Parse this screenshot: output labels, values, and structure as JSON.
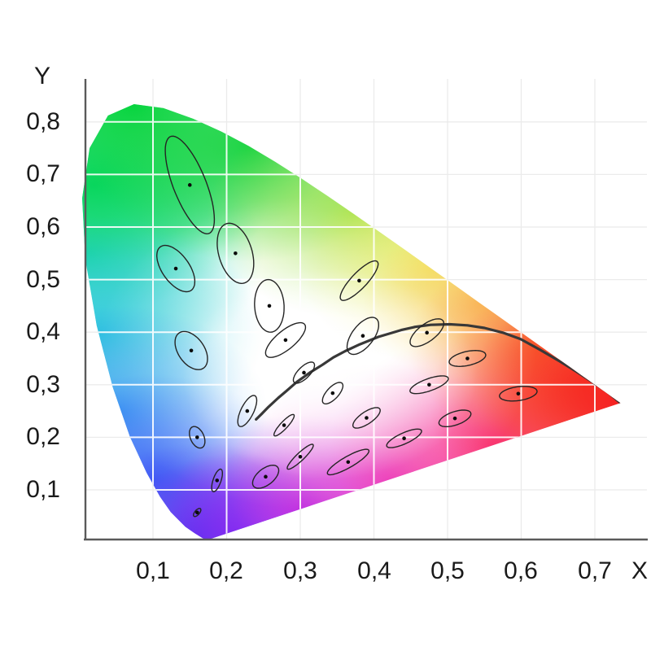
{
  "chart_data": {
    "type": "scatter",
    "description": "CIE 1931 xy chromaticity diagram (horseshoe gamut with spectral colors) showing the 25 MacAdam ellipses magnified 10x as black outlines with center dots, and the Planckian (black-body) locus as a dark curve",
    "title": "",
    "xlabel": "X",
    "ylabel": "Y",
    "xlim": [
      0,
      0.76
    ],
    "ylim": [
      0,
      0.88
    ],
    "grid": true,
    "x_tick_labels": [
      "0,1",
      "0,2",
      "0,3",
      "0,4",
      "0,5",
      "0,6",
      "0,7"
    ],
    "x_tick_values": [
      0.1,
      0.2,
      0.3,
      0.4,
      0.5,
      0.6,
      0.7
    ],
    "y_tick_labels": [
      "0,8",
      "0,7",
      "0,6",
      "0,5",
      "0,4",
      "0,3",
      "0,2",
      "0,1"
    ],
    "y_tick_values": [
      0.8,
      0.7,
      0.6,
      0.5,
      0.4,
      0.3,
      0.2,
      0.1
    ],
    "macadam_magnification": 10,
    "macadam_ellipses": [
      {
        "x": 0.16,
        "y": 0.057,
        "a": 0.00085,
        "b": 0.00035,
        "theta": 62.5
      },
      {
        "x": 0.187,
        "y": 0.118,
        "a": 0.0022,
        "b": 0.00055,
        "theta": 77.0
      },
      {
        "x": 0.253,
        "y": 0.125,
        "a": 0.0025,
        "b": 0.0013,
        "theta": 55.5
      },
      {
        "x": 0.15,
        "y": 0.68,
        "a": 0.0096,
        "b": 0.0023,
        "theta": 105.0
      },
      {
        "x": 0.131,
        "y": 0.521,
        "a": 0.0047,
        "b": 0.002,
        "theta": 112.5
      },
      {
        "x": 0.212,
        "y": 0.55,
        "a": 0.0058,
        "b": 0.0023,
        "theta": 100.0
      },
      {
        "x": 0.258,
        "y": 0.45,
        "a": 0.005,
        "b": 0.002,
        "theta": 92.0
      },
      {
        "x": 0.152,
        "y": 0.365,
        "a": 0.0038,
        "b": 0.0019,
        "theta": 110.0
      },
      {
        "x": 0.28,
        "y": 0.385,
        "a": 0.004,
        "b": 0.0015,
        "theta": 52.5
      },
      {
        "x": 0.38,
        "y": 0.498,
        "a": 0.0044,
        "b": 0.0012,
        "theta": 57.5
      },
      {
        "x": 0.16,
        "y": 0.2,
        "a": 0.0021,
        "b": 0.00095,
        "theta": 104.0
      },
      {
        "x": 0.228,
        "y": 0.25,
        "a": 0.0031,
        "b": 0.0009,
        "theta": 72.0
      },
      {
        "x": 0.305,
        "y": 0.323,
        "a": 0.0023,
        "b": 0.0009,
        "theta": 58.0
      },
      {
        "x": 0.385,
        "y": 0.393,
        "a": 0.0038,
        "b": 0.0016,
        "theta": 65.5
      },
      {
        "x": 0.472,
        "y": 0.399,
        "a": 0.0032,
        "b": 0.0014,
        "theta": 51.0
      },
      {
        "x": 0.527,
        "y": 0.35,
        "a": 0.0026,
        "b": 0.0013,
        "theta": 20.0
      },
      {
        "x": 0.475,
        "y": 0.3,
        "a": 0.0029,
        "b": 0.0011,
        "theta": 28.5
      },
      {
        "x": 0.51,
        "y": 0.236,
        "a": 0.0024,
        "b": 0.0012,
        "theta": 29.5
      },
      {
        "x": 0.596,
        "y": 0.283,
        "a": 0.0026,
        "b": 0.0013,
        "theta": 13.0
      },
      {
        "x": 0.344,
        "y": 0.284,
        "a": 0.0023,
        "b": 0.0009,
        "theta": 60.0
      },
      {
        "x": 0.39,
        "y": 0.237,
        "a": 0.0025,
        "b": 0.001,
        "theta": 47.0
      },
      {
        "x": 0.441,
        "y": 0.198,
        "a": 0.0028,
        "b": 0.00095,
        "theta": 34.5
      },
      {
        "x": 0.278,
        "y": 0.223,
        "a": 0.0024,
        "b": 0.00055,
        "theta": 57.5
      },
      {
        "x": 0.3,
        "y": 0.163,
        "a": 0.0029,
        "b": 0.0006,
        "theta": 54.0
      },
      {
        "x": 0.365,
        "y": 0.153,
        "a": 0.0036,
        "b": 0.00095,
        "theta": 40.0
      }
    ],
    "planckian_locus": [
      [
        0.24,
        0.234
      ],
      [
        0.248,
        0.245
      ],
      [
        0.257,
        0.258
      ],
      [
        0.27,
        0.275
      ],
      [
        0.281,
        0.288
      ],
      [
        0.295,
        0.305
      ],
      [
        0.313,
        0.323
      ],
      [
        0.33,
        0.338
      ],
      [
        0.345,
        0.352
      ],
      [
        0.361,
        0.364
      ],
      [
        0.381,
        0.377
      ],
      [
        0.406,
        0.391
      ],
      [
        0.437,
        0.404
      ],
      [
        0.456,
        0.41
      ],
      [
        0.477,
        0.414
      ],
      [
        0.503,
        0.415
      ],
      [
        0.527,
        0.413
      ],
      [
        0.55,
        0.408
      ],
      [
        0.575,
        0.399
      ],
      [
        0.599,
        0.387
      ],
      [
        0.625,
        0.367
      ],
      [
        0.653,
        0.344
      ],
      [
        0.675,
        0.325
      ],
      [
        0.697,
        0.305
      ],
      [
        0.717,
        0.286
      ],
      [
        0.735,
        0.265
      ]
    ],
    "spectral_locus": [
      [
        0.1741,
        0.005
      ],
      [
        0.174,
        0.005
      ],
      [
        0.1733,
        0.0048
      ],
      [
        0.1726,
        0.0048
      ],
      [
        0.1714,
        0.0051
      ],
      [
        0.1689,
        0.0069
      ],
      [
        0.1644,
        0.0109
      ],
      [
        0.1566,
        0.0177
      ],
      [
        0.144,
        0.0297
      ],
      [
        0.1241,
        0.0578
      ],
      [
        0.1096,
        0.0868
      ],
      [
        0.0913,
        0.1327
      ],
      [
        0.0687,
        0.2007
      ],
      [
        0.0454,
        0.295
      ],
      [
        0.0235,
        0.4127
      ],
      [
        0.0082,
        0.5384
      ],
      [
        0.0039,
        0.6548
      ],
      [
        0.0139,
        0.7502
      ],
      [
        0.0389,
        0.812
      ],
      [
        0.0743,
        0.8338
      ],
      [
        0.1142,
        0.8262
      ],
      [
        0.1547,
        0.8059
      ],
      [
        0.1929,
        0.7816
      ],
      [
        0.2296,
        0.7543
      ],
      [
        0.2658,
        0.7243
      ],
      [
        0.3016,
        0.6923
      ],
      [
        0.3373,
        0.6589
      ],
      [
        0.3731,
        0.6245
      ],
      [
        0.4087,
        0.5896
      ],
      [
        0.4441,
        0.5547
      ],
      [
        0.4788,
        0.5202
      ],
      [
        0.5125,
        0.4866
      ],
      [
        0.5448,
        0.4544
      ],
      [
        0.5752,
        0.4242
      ],
      [
        0.6029,
        0.3965
      ],
      [
        0.627,
        0.3725
      ],
      [
        0.6482,
        0.3514
      ],
      [
        0.6658,
        0.334
      ],
      [
        0.6801,
        0.3197
      ],
      [
        0.6915,
        0.3083
      ],
      [
        0.7006,
        0.2993
      ],
      [
        0.7079,
        0.292
      ],
      [
        0.714,
        0.2859
      ],
      [
        0.719,
        0.2809
      ],
      [
        0.723,
        0.277
      ],
      [
        0.726,
        0.274
      ],
      [
        0.7283,
        0.2717
      ],
      [
        0.73,
        0.27
      ],
      [
        0.732,
        0.268
      ],
      [
        0.7334,
        0.2666
      ],
      [
        0.7344,
        0.2656
      ],
      [
        0.7347,
        0.2653
      ]
    ],
    "colors": {
      "axis": "#5a5a5a",
      "grid_inside": "#ffffff",
      "grid_outside": "#ebebeb",
      "ellipse_stroke": "#242424",
      "point_fill": "#0b0b0b",
      "planckian_stroke": "#383838",
      "gradient_spots": [
        {
          "x": 0.01,
          "y": 0.55,
          "r": 0.24,
          "color": "#1ed8b4",
          "opacity": 1
        },
        {
          "x": 0.02,
          "y": 0.68,
          "r": 0.24,
          "color": "#0fd878",
          "opacity": 1
        },
        {
          "x": 0.074,
          "y": 0.834,
          "r": 0.3,
          "color": "#00d43c",
          "opacity": 1
        },
        {
          "x": 0.23,
          "y": 0.754,
          "r": 0.22,
          "color": "#1ed444, ",
          "opacity": 1
        },
        {
          "x": 0.373,
          "y": 0.625,
          "r": 0.2,
          "color": "#9be03c",
          "opacity": 0.9
        },
        {
          "x": 0.03,
          "y": 0.4,
          "r": 0.22,
          "color": "#2cc8dc",
          "opacity": 1
        },
        {
          "x": 0.055,
          "y": 0.25,
          "r": 0.2,
          "color": "#38a0f0",
          "opacity": 1
        },
        {
          "x": 0.1,
          "y": 0.12,
          "r": 0.2,
          "color": "#3c64f6",
          "opacity": 1
        },
        {
          "x": 0.165,
          "y": 0.01,
          "r": 0.18,
          "color": "#503cf0",
          "opacity": 1
        },
        {
          "x": 0.21,
          "y": 0.02,
          "r": 0.15,
          "color": "#6428f0",
          "opacity": 1
        },
        {
          "x": 0.3,
          "y": 0.063,
          "r": 0.18,
          "color": "#aa32f0",
          "opacity": 1
        },
        {
          "x": 0.42,
          "y": 0.12,
          "r": 0.22,
          "color": "#e632c8",
          "opacity": 1
        },
        {
          "x": 0.56,
          "y": 0.185,
          "r": 0.22,
          "color": "#fa3c8c",
          "opacity": 1
        },
        {
          "x": 0.479,
          "y": 0.52,
          "r": 0.18,
          "color": "#f0e84a",
          "opacity": 0.95
        },
        {
          "x": 0.545,
          "y": 0.454,
          "r": 0.16,
          "color": "#f7c04a",
          "opacity": 0.95
        },
        {
          "x": 0.627,
          "y": 0.372,
          "r": 0.18,
          "color": "#fa8432",
          "opacity": 1
        },
        {
          "x": 0.692,
          "y": 0.308,
          "r": 0.16,
          "color": "#fa5028",
          "opacity": 1
        },
        {
          "x": 0.735,
          "y": 0.265,
          "r": 0.26,
          "color": "#f52020",
          "opacity": 1
        },
        {
          "x": 0.34,
          "y": 0.32,
          "r": 0.2,
          "color": "#ffffff",
          "opacity": 0.95
        },
        {
          "x": 0.32,
          "y": 0.36,
          "r": 0.3,
          "color": "#ffffff",
          "opacity": 0.55
        }
      ]
    }
  }
}
